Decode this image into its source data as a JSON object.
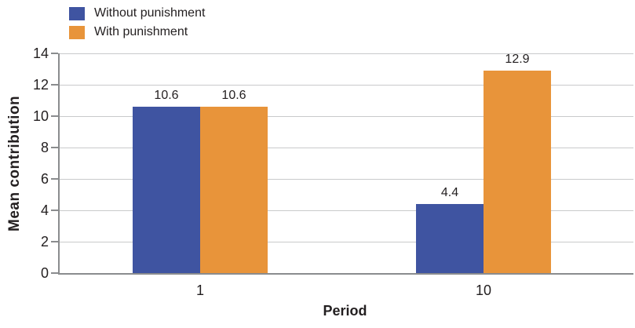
{
  "chart_data": {
    "type": "bar",
    "categories": [
      "1",
      "10"
    ],
    "series": [
      {
        "name": "Without punishment",
        "color": "#3f54a1",
        "values": [
          10.6,
          4.4
        ]
      },
      {
        "name": "With punishment",
        "color": "#e8943a",
        "values": [
          10.6,
          12.9
        ]
      }
    ],
    "value_labels": [
      [
        "10.6",
        "4.4"
      ],
      [
        "10.6",
        "12.9"
      ]
    ],
    "title": "",
    "xlabel": "Period",
    "ylabel": "Mean contribution",
    "ylim": [
      0,
      14
    ],
    "ytick_step": 2,
    "yticks": [
      "0",
      "2",
      "4",
      "6",
      "8",
      "10",
      "12",
      "14"
    ],
    "grid": "horizontal",
    "legend_position": "top-left",
    "colors": {
      "grid": "#c9cacb",
      "axis": "#8a8c8e",
      "text": "#231f20",
      "background": "#ffffff"
    }
  }
}
